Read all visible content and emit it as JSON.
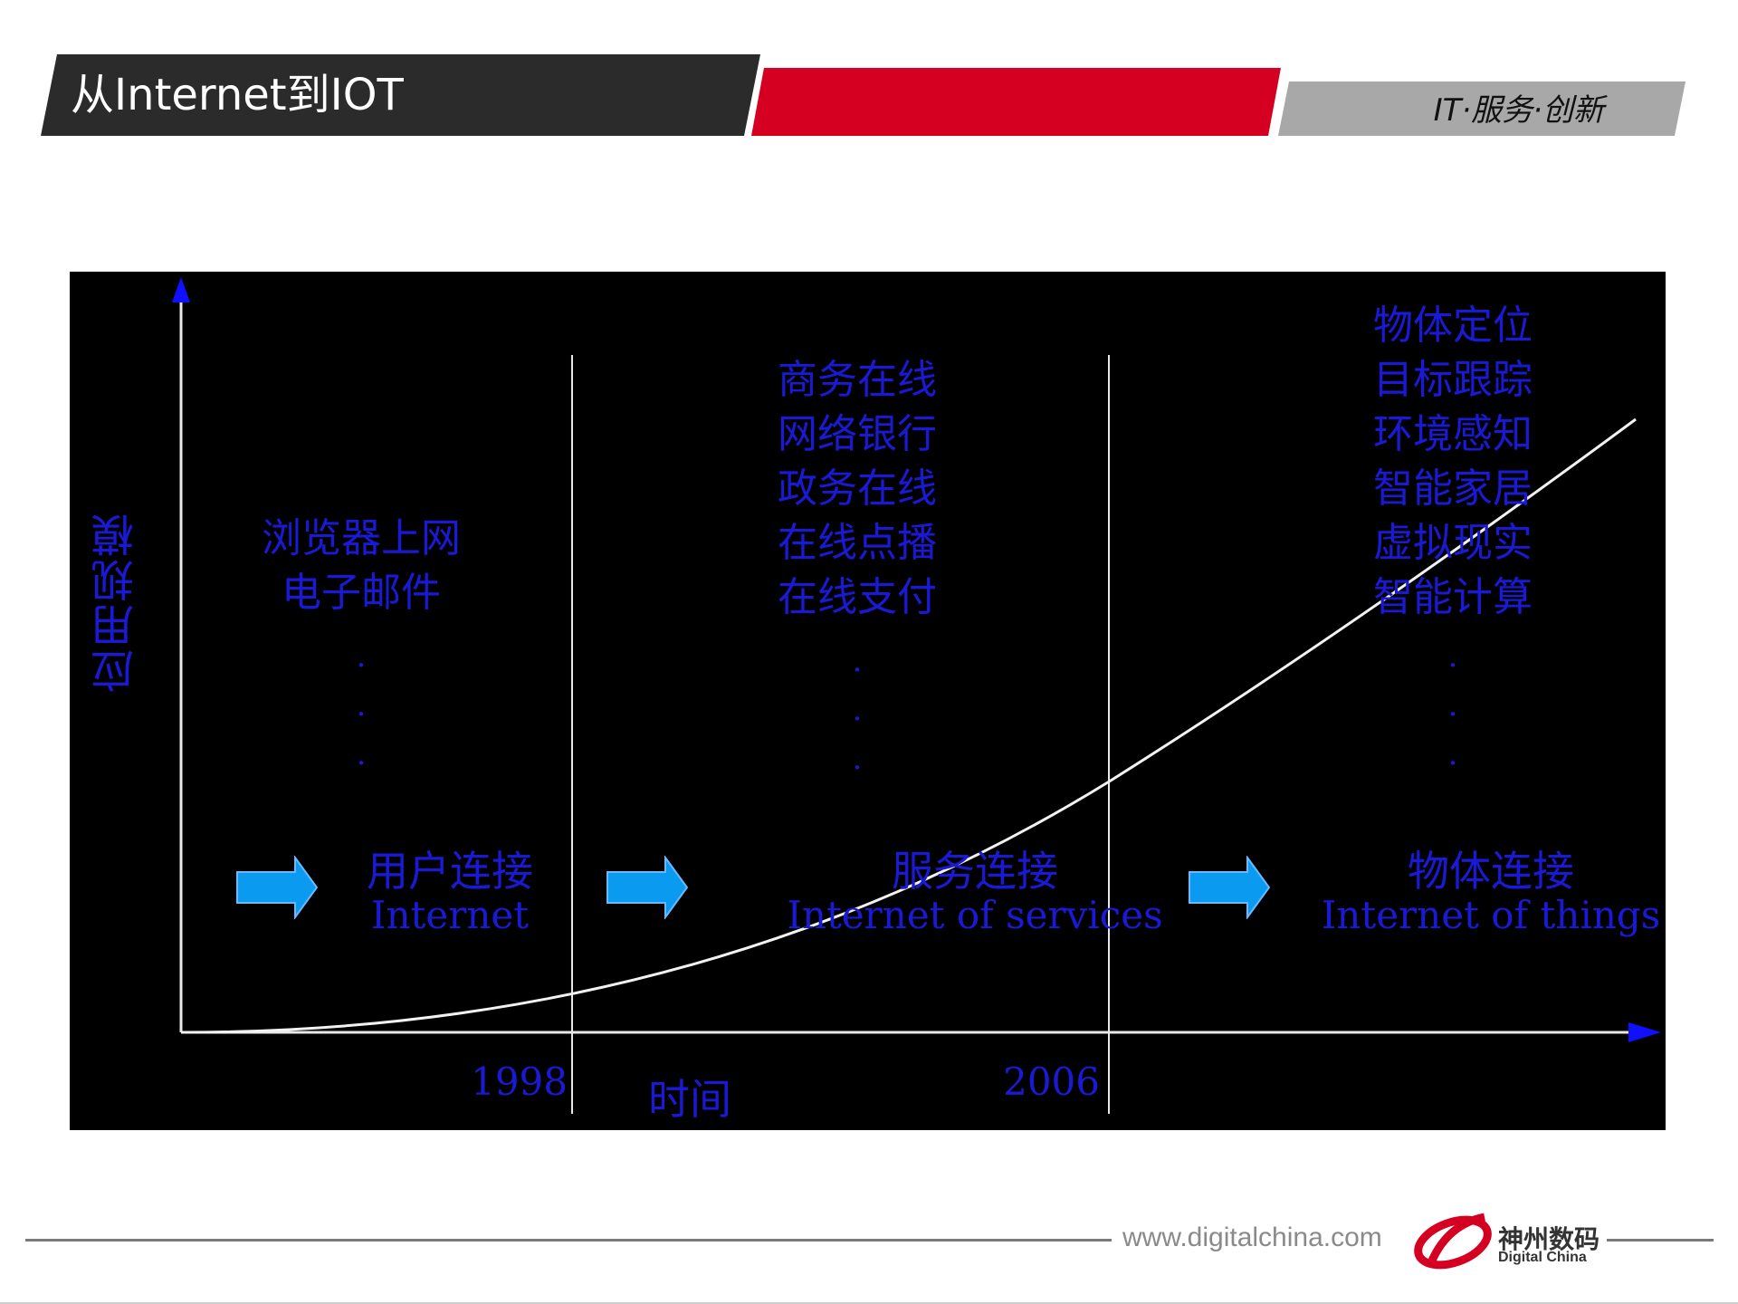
{
  "header": {
    "title": "从Internet到IOT",
    "slogan": "IT·服务·创新",
    "colors": {
      "dark": "#2b2b2b",
      "red": "#d50021",
      "grey": "#a8a8a8"
    }
  },
  "diagram": {
    "background": "#000000",
    "text_color": "#1a1ad6",
    "y_axis_label": "应用规模",
    "x_axis_label": "时间",
    "years": [
      "1998",
      "2006"
    ],
    "phases": [
      {
        "items": [
          "浏览器上网",
          "电子邮件"
        ],
        "dots": [
          ".",
          ".",
          "."
        ],
        "title_cn": "用户连接",
        "title_en": "Internet"
      },
      {
        "items": [
          "商务在线",
          "网络银行",
          "政务在线",
          "在线点播",
          "在线支付"
        ],
        "dots": [
          ".",
          ".",
          "."
        ],
        "title_cn": "服务连接",
        "title_en": "Internet of services"
      },
      {
        "items": [
          "物体定位",
          "目标跟踪",
          "环境感知",
          "智能家居",
          "虚拟现实",
          "智能计算"
        ],
        "dots": [
          ".",
          ".",
          "."
        ],
        "title_cn": "物体连接",
        "title_en": "Internet of things"
      }
    ],
    "icons": [
      "blue-right-arrow-icon"
    ]
  },
  "footer": {
    "url": "www.digitalchina.com",
    "brand_cn": "神州数码",
    "brand_en": "Digital China"
  }
}
